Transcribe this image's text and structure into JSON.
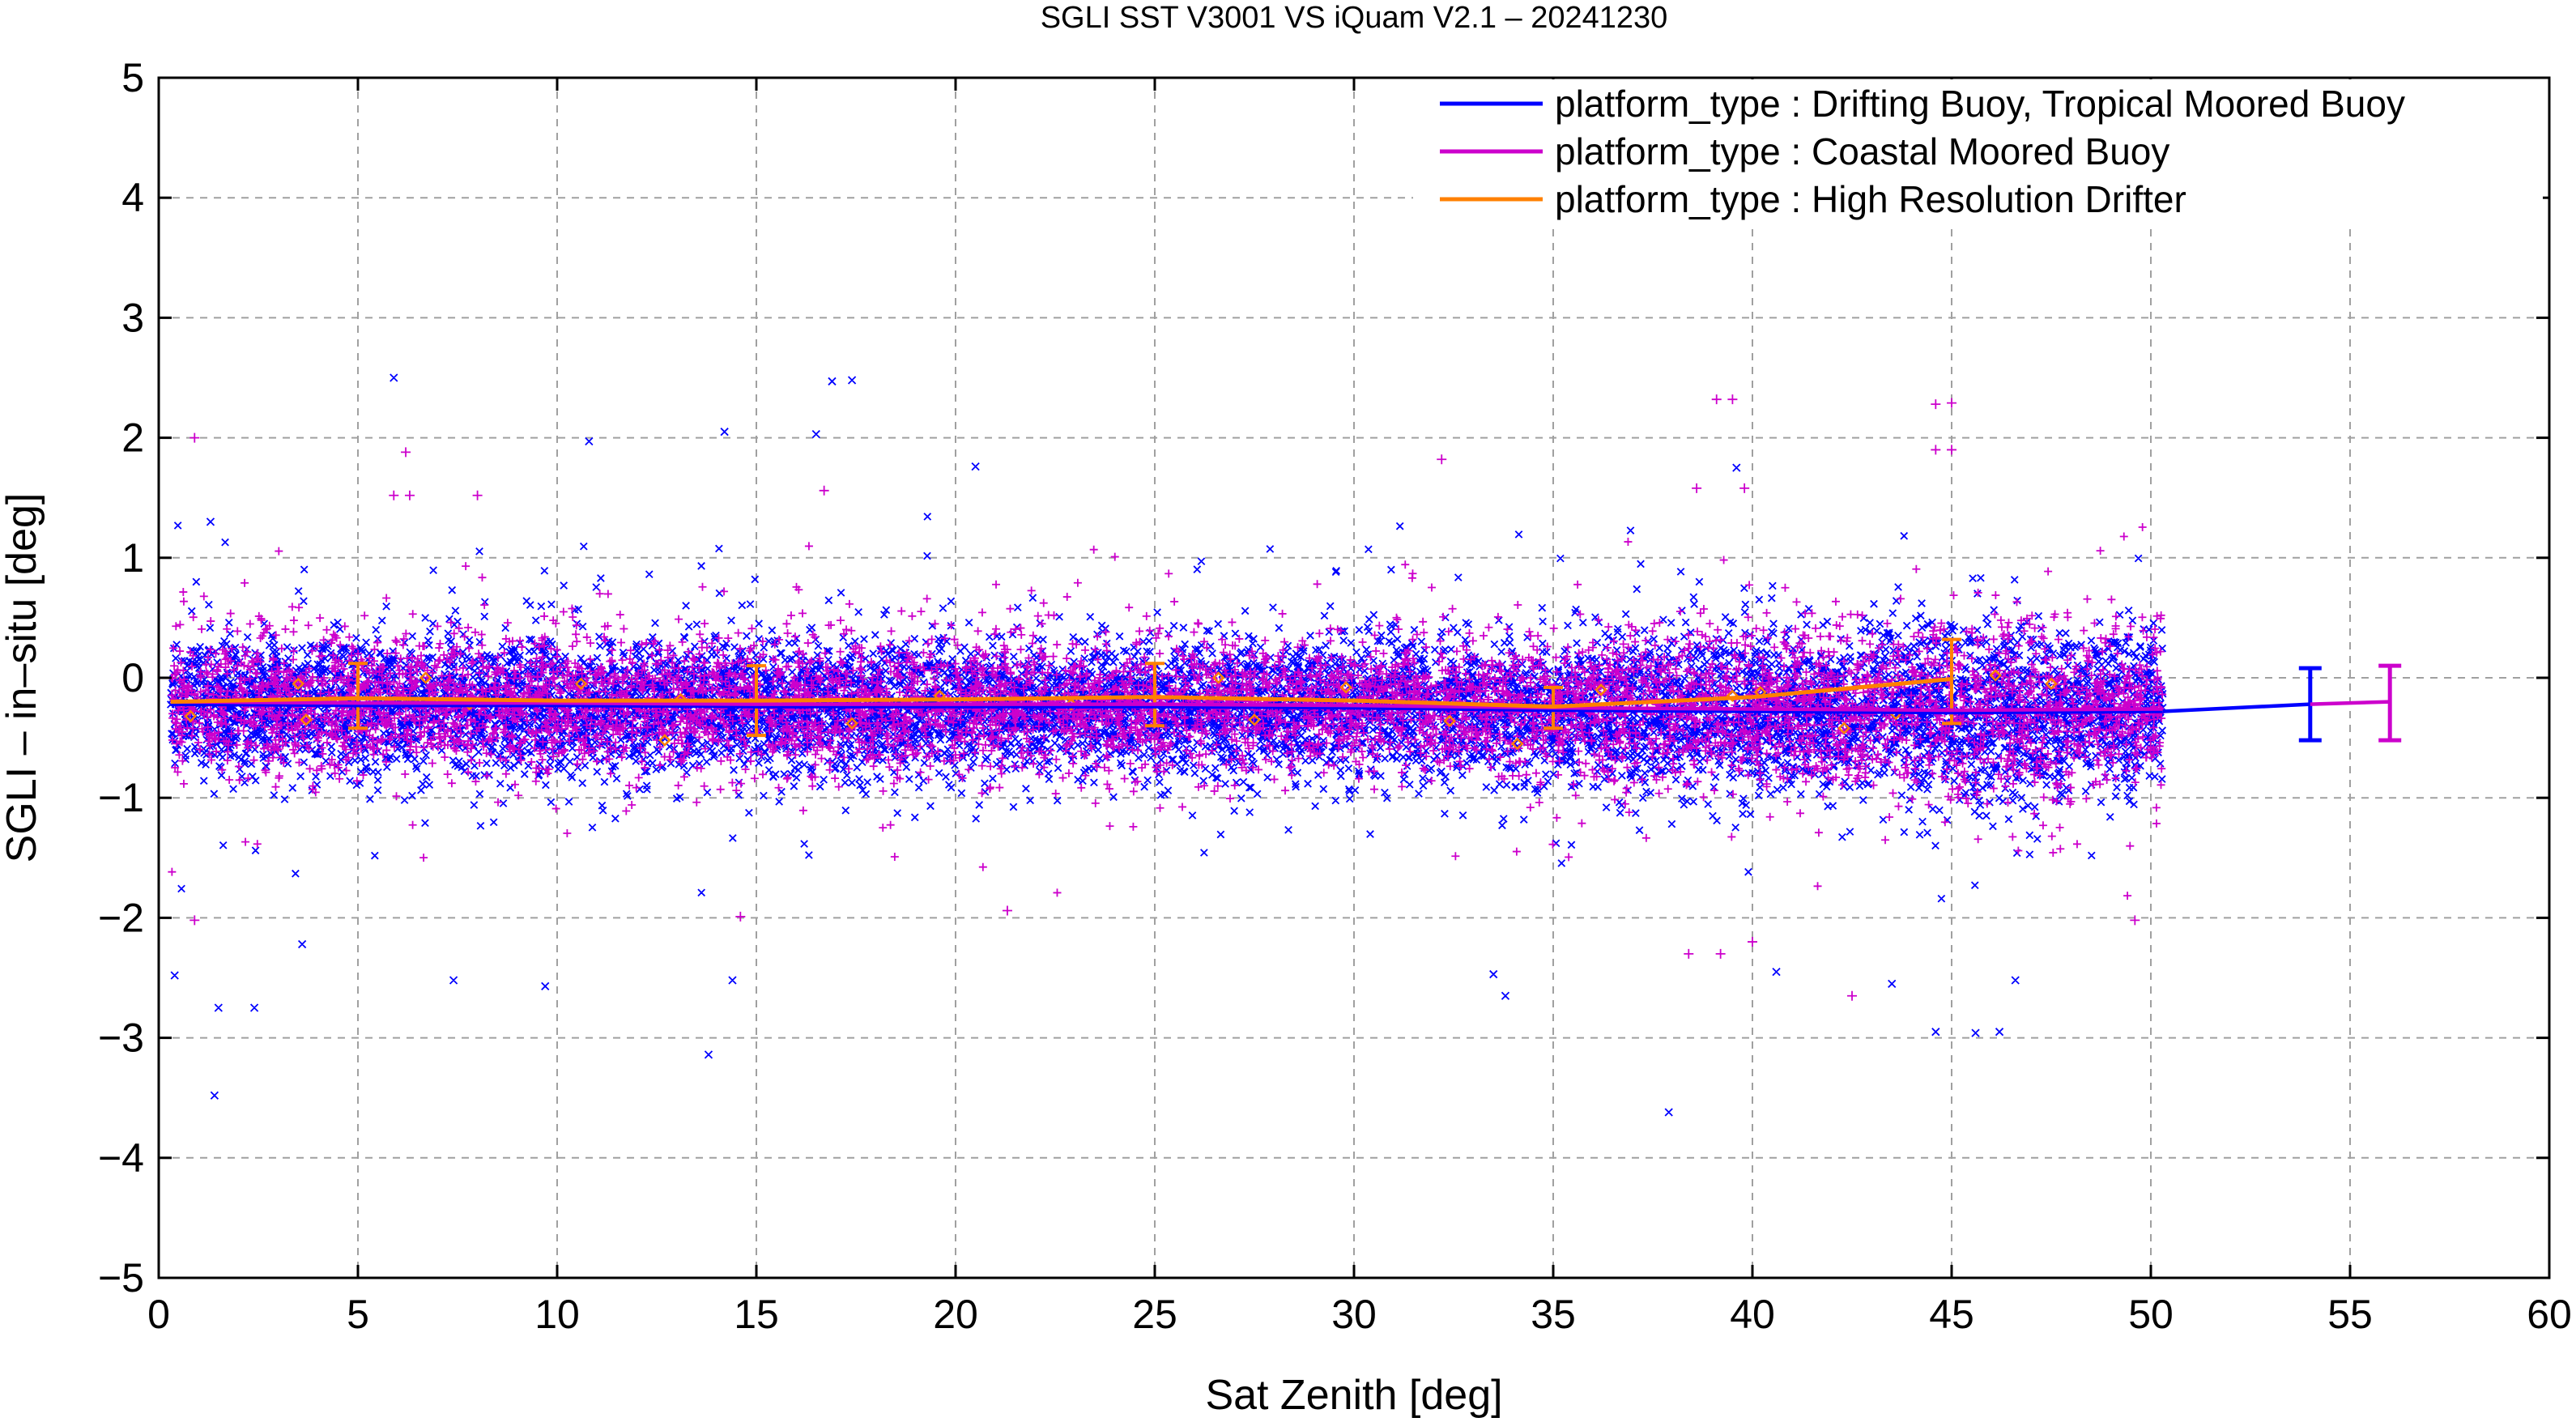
{
  "chart_data": {
    "type": "scatter",
    "title": "SGLI SST V3001 VS iQuam V2.1  – 20241230",
    "xlabel": "Sat Zenith [deg]",
    "ylabel": "SGLI – in–situ [deg]",
    "xlim": [
      0,
      60
    ],
    "ylim": [
      -5,
      5
    ],
    "xticks": [
      0,
      5,
      10,
      15,
      20,
      25,
      30,
      35,
      40,
      45,
      50,
      55,
      60
    ],
    "yticks": [
      -5,
      -4,
      -3,
      -2,
      -1,
      0,
      1,
      2,
      3,
      4,
      5
    ],
    "xtick_labels": [
      "0",
      "5",
      "10",
      "15",
      "20",
      "25",
      "30",
      "35",
      "40",
      "45",
      "50",
      "55",
      "60"
    ],
    "ytick_labels": [
      "−5",
      "−4",
      "−3",
      "−2",
      "−1",
      "0",
      "1",
      "2",
      "3",
      "4",
      "5"
    ],
    "grid": true,
    "legend_position": "top-right",
    "series": [
      {
        "name": "platform_type : Drifting Buoy, Tropical Moored Buoy",
        "color": "#0000ff",
        "marker": "x",
        "x_range": [
          0.3,
          50.3
        ],
        "mean_line": {
          "x": [
            0.3,
            5,
            10,
            15,
            20,
            25,
            30,
            35,
            40,
            45,
            50.3
          ],
          "y": [
            -0.22,
            -0.23,
            -0.23,
            -0.24,
            -0.24,
            -0.24,
            -0.25,
            -0.27,
            -0.28,
            -0.29,
            -0.28
          ]
        },
        "summary_errorbar": {
          "x": 54,
          "mean": -0.22,
          "low": -0.52,
          "high": 0.08
        },
        "outliers": [
          {
            "x": 5.9,
            "y": 2.5
          },
          {
            "x": 17.4,
            "y": 2.48
          },
          {
            "x": 16.9,
            "y": 2.47
          },
          {
            "x": 14.2,
            "y": 2.05
          },
          {
            "x": 16.5,
            "y": 2.03
          },
          {
            "x": 10.8,
            "y": 1.97
          },
          {
            "x": 20.5,
            "y": 1.76
          },
          {
            "x": 39.6,
            "y": 1.75
          },
          {
            "x": 1.3,
            "y": 1.3
          },
          {
            "x": 0.4,
            "y": -2.48
          },
          {
            "x": 1.5,
            "y": -2.75
          },
          {
            "x": 2.4,
            "y": -2.75
          },
          {
            "x": 3.6,
            "y": -2.22
          },
          {
            "x": 7.4,
            "y": -2.52
          },
          {
            "x": 9.7,
            "y": -2.57
          },
          {
            "x": 14.4,
            "y": -2.52
          },
          {
            "x": 13.8,
            "y": -3.14
          },
          {
            "x": 1.4,
            "y": -3.48
          },
          {
            "x": 37.9,
            "y": -3.62
          },
          {
            "x": 33.5,
            "y": -2.47
          },
          {
            "x": 33.8,
            "y": -2.65
          },
          {
            "x": 40.6,
            "y": -2.45
          },
          {
            "x": 43.5,
            "y": -2.55
          },
          {
            "x": 44.6,
            "y": -2.95
          },
          {
            "x": 45.6,
            "y": -2.96
          },
          {
            "x": 46.2,
            "y": -2.95
          },
          {
            "x": 46.6,
            "y": -2.52
          }
        ]
      },
      {
        "name": "platform_type : Coastal Moored Buoy",
        "color": "#cc00cc",
        "marker": "+",
        "x_range": [
          0.3,
          50.3
        ],
        "mean_line": {
          "x": [
            0.3,
            5,
            10,
            15,
            20,
            25,
            30,
            35,
            40,
            45,
            50.3
          ],
          "y": [
            -0.2,
            -0.21,
            -0.21,
            -0.22,
            -0.22,
            -0.22,
            -0.23,
            -0.25,
            -0.26,
            -0.27,
            -0.26
          ]
        },
        "summary_errorbar": {
          "x": 56,
          "mean": -0.2,
          "low": -0.52,
          "high": 0.1
        },
        "outliers": [
          {
            "x": 0.9,
            "y": 2.0
          },
          {
            "x": 6.2,
            "y": 1.88
          },
          {
            "x": 5.9,
            "y": 1.52
          },
          {
            "x": 6.3,
            "y": 1.52
          },
          {
            "x": 8.0,
            "y": 1.52
          },
          {
            "x": 16.7,
            "y": 1.56
          },
          {
            "x": 39.1,
            "y": 2.32
          },
          {
            "x": 39.5,
            "y": 2.32
          },
          {
            "x": 44.6,
            "y": 2.28
          },
          {
            "x": 45.0,
            "y": 2.29
          },
          {
            "x": 44.6,
            "y": 1.9
          },
          {
            "x": 45.0,
            "y": 1.9
          },
          {
            "x": 32.2,
            "y": 1.82
          },
          {
            "x": 38.6,
            "y": 1.58
          },
          {
            "x": 39.8,
            "y": 1.58
          },
          {
            "x": 39.2,
            "y": -2.3
          },
          {
            "x": 38.4,
            "y": -2.3
          },
          {
            "x": 40.0,
            "y": -2.2
          },
          {
            "x": 42.5,
            "y": -2.65
          },
          {
            "x": 49.6,
            "y": -2.02
          },
          {
            "x": 0.9,
            "y": -2.02
          },
          {
            "x": 14.6,
            "y": -1.99
          },
          {
            "x": 21.3,
            "y": -1.94
          }
        ]
      },
      {
        "name": "platform_type : High Resolution Drifter",
        "color": "#ff8000",
        "marker": "diamond",
        "mean_line": {
          "x": [
            0.3,
            5,
            10,
            15,
            20,
            25,
            30,
            35,
            40,
            45
          ],
          "y": [
            -0.2,
            -0.17,
            -0.19,
            -0.19,
            -0.18,
            -0.16,
            -0.19,
            -0.24,
            -0.16,
            -0.01
          ]
        },
        "errorbars": [
          {
            "x": 5,
            "mean": -0.17,
            "low": -0.42,
            "high": 0.12
          },
          {
            "x": 15,
            "mean": -0.19,
            "low": -0.48,
            "high": 0.1
          },
          {
            "x": 25,
            "mean": -0.16,
            "low": -0.4,
            "high": 0.12
          },
          {
            "x": 35,
            "mean": -0.24,
            "low": -0.42,
            "high": -0.08
          },
          {
            "x": 45,
            "mean": -0.01,
            "low": -0.38,
            "high": 0.32
          }
        ],
        "points": [
          {
            "x": 0.8,
            "y": -0.32
          },
          {
            "x": 3.5,
            "y": -0.05
          },
          {
            "x": 3.7,
            "y": -0.35
          },
          {
            "x": 6.7,
            "y": 0.0
          },
          {
            "x": 7.8,
            "y": -0.22
          },
          {
            "x": 10.6,
            "y": -0.05
          },
          {
            "x": 12.7,
            "y": -0.52
          },
          {
            "x": 13.1,
            "y": -0.18
          },
          {
            "x": 17.4,
            "y": -0.38
          },
          {
            "x": 19.6,
            "y": -0.15
          },
          {
            "x": 22.9,
            "y": -0.22
          },
          {
            "x": 26.6,
            "y": 0.0
          },
          {
            "x": 27.5,
            "y": -0.35
          },
          {
            "x": 29.8,
            "y": -0.08
          },
          {
            "x": 32.4,
            "y": -0.36
          },
          {
            "x": 34.1,
            "y": -0.55
          },
          {
            "x": 36.2,
            "y": -0.1
          },
          {
            "x": 39.5,
            "y": -0.15
          },
          {
            "x": 40.2,
            "y": -0.12
          },
          {
            "x": 42.3,
            "y": -0.42
          },
          {
            "x": 43.6,
            "y": -0.3
          },
          {
            "x": 46.1,
            "y": 0.02
          },
          {
            "x": 47.5,
            "y": -0.05
          }
        ]
      }
    ]
  },
  "colors": {
    "drifting_buoy": "#0000ff",
    "coastal_buoy": "#cc00cc",
    "high_res_drifter": "#ff8000",
    "grid": "#a0a0a0",
    "axes": "#000000"
  }
}
